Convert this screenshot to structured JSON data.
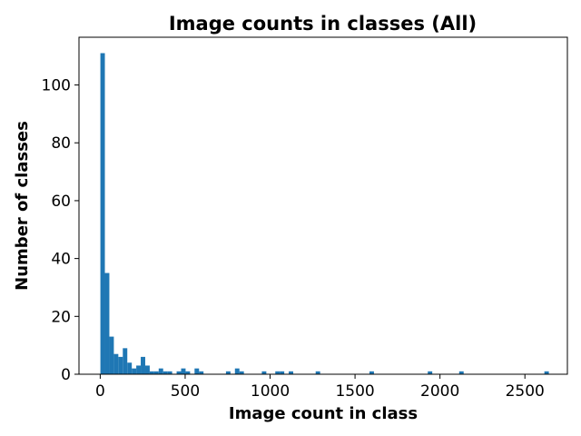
{
  "chart_data": {
    "type": "bar",
    "title": "Image counts in classes (All)",
    "xlabel": "Image count in class",
    "ylabel": "Number of classes",
    "xlim": [
      -125,
      2750
    ],
    "ylim": [
      0,
      116.5
    ],
    "xticks": [
      0,
      500,
      1000,
      1500,
      2000,
      2500
    ],
    "yticks": [
      0,
      20,
      40,
      60,
      80,
      100
    ],
    "bin_width": 26.4,
    "bin_start": 1,
    "bar_color": "#1f77b4",
    "grid": false,
    "legend": "none",
    "bins": [
      {
        "x": 1,
        "value": 111
      },
      {
        "x": 27.4,
        "value": 35
      },
      {
        "x": 53.8,
        "value": 13
      },
      {
        "x": 80.2,
        "value": 7
      },
      {
        "x": 106.6,
        "value": 6
      },
      {
        "x": 133,
        "value": 9
      },
      {
        "x": 159.4,
        "value": 4
      },
      {
        "x": 185.8,
        "value": 2
      },
      {
        "x": 212.2,
        "value": 3
      },
      {
        "x": 238.6,
        "value": 6
      },
      {
        "x": 265,
        "value": 3
      },
      {
        "x": 291.4,
        "value": 1
      },
      {
        "x": 317.8,
        "value": 1
      },
      {
        "x": 344.2,
        "value": 2
      },
      {
        "x": 370.6,
        "value": 1
      },
      {
        "x": 397,
        "value": 1
      },
      {
        "x": 449.8,
        "value": 1
      },
      {
        "x": 476.2,
        "value": 2
      },
      {
        "x": 502.6,
        "value": 1
      },
      {
        "x": 555.4,
        "value": 2
      },
      {
        "x": 581.8,
        "value": 1
      },
      {
        "x": 740.2,
        "value": 1
      },
      {
        "x": 793,
        "value": 2
      },
      {
        "x": 819.4,
        "value": 1
      },
      {
        "x": 951.4,
        "value": 1
      },
      {
        "x": 1030.6,
        "value": 1
      },
      {
        "x": 1057,
        "value": 1
      },
      {
        "x": 1109.8,
        "value": 1
      },
      {
        "x": 1268.2,
        "value": 1
      },
      {
        "x": 1585,
        "value": 1
      },
      {
        "x": 1928.2,
        "value": 1
      },
      {
        "x": 2113,
        "value": 1
      },
      {
        "x": 2614.6,
        "value": 1
      }
    ]
  }
}
